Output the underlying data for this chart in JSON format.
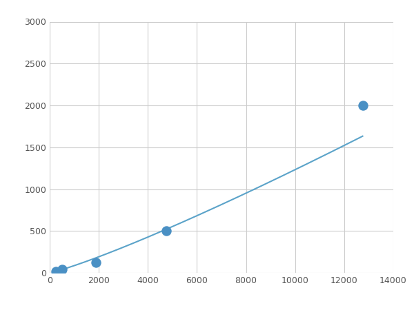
{
  "x_points": [
    250,
    500,
    1875,
    4750,
    12750
  ],
  "y_points": [
    20,
    40,
    125,
    500,
    2000
  ],
  "line_color": "#5BA3C9",
  "marker_color": "#4A90C4",
  "marker_size": 6,
  "xlim": [
    0,
    14000
  ],
  "ylim": [
    0,
    3000
  ],
  "xticks": [
    0,
    2000,
    4000,
    6000,
    8000,
    10000,
    12000,
    14000
  ],
  "yticks": [
    0,
    500,
    1000,
    1500,
    2000,
    2500,
    3000
  ],
  "grid_color": "#CCCCCC",
  "background_color": "#FFFFFF",
  "line_width": 1.5,
  "figsize": [
    6.0,
    4.5
  ],
  "dpi": 100
}
